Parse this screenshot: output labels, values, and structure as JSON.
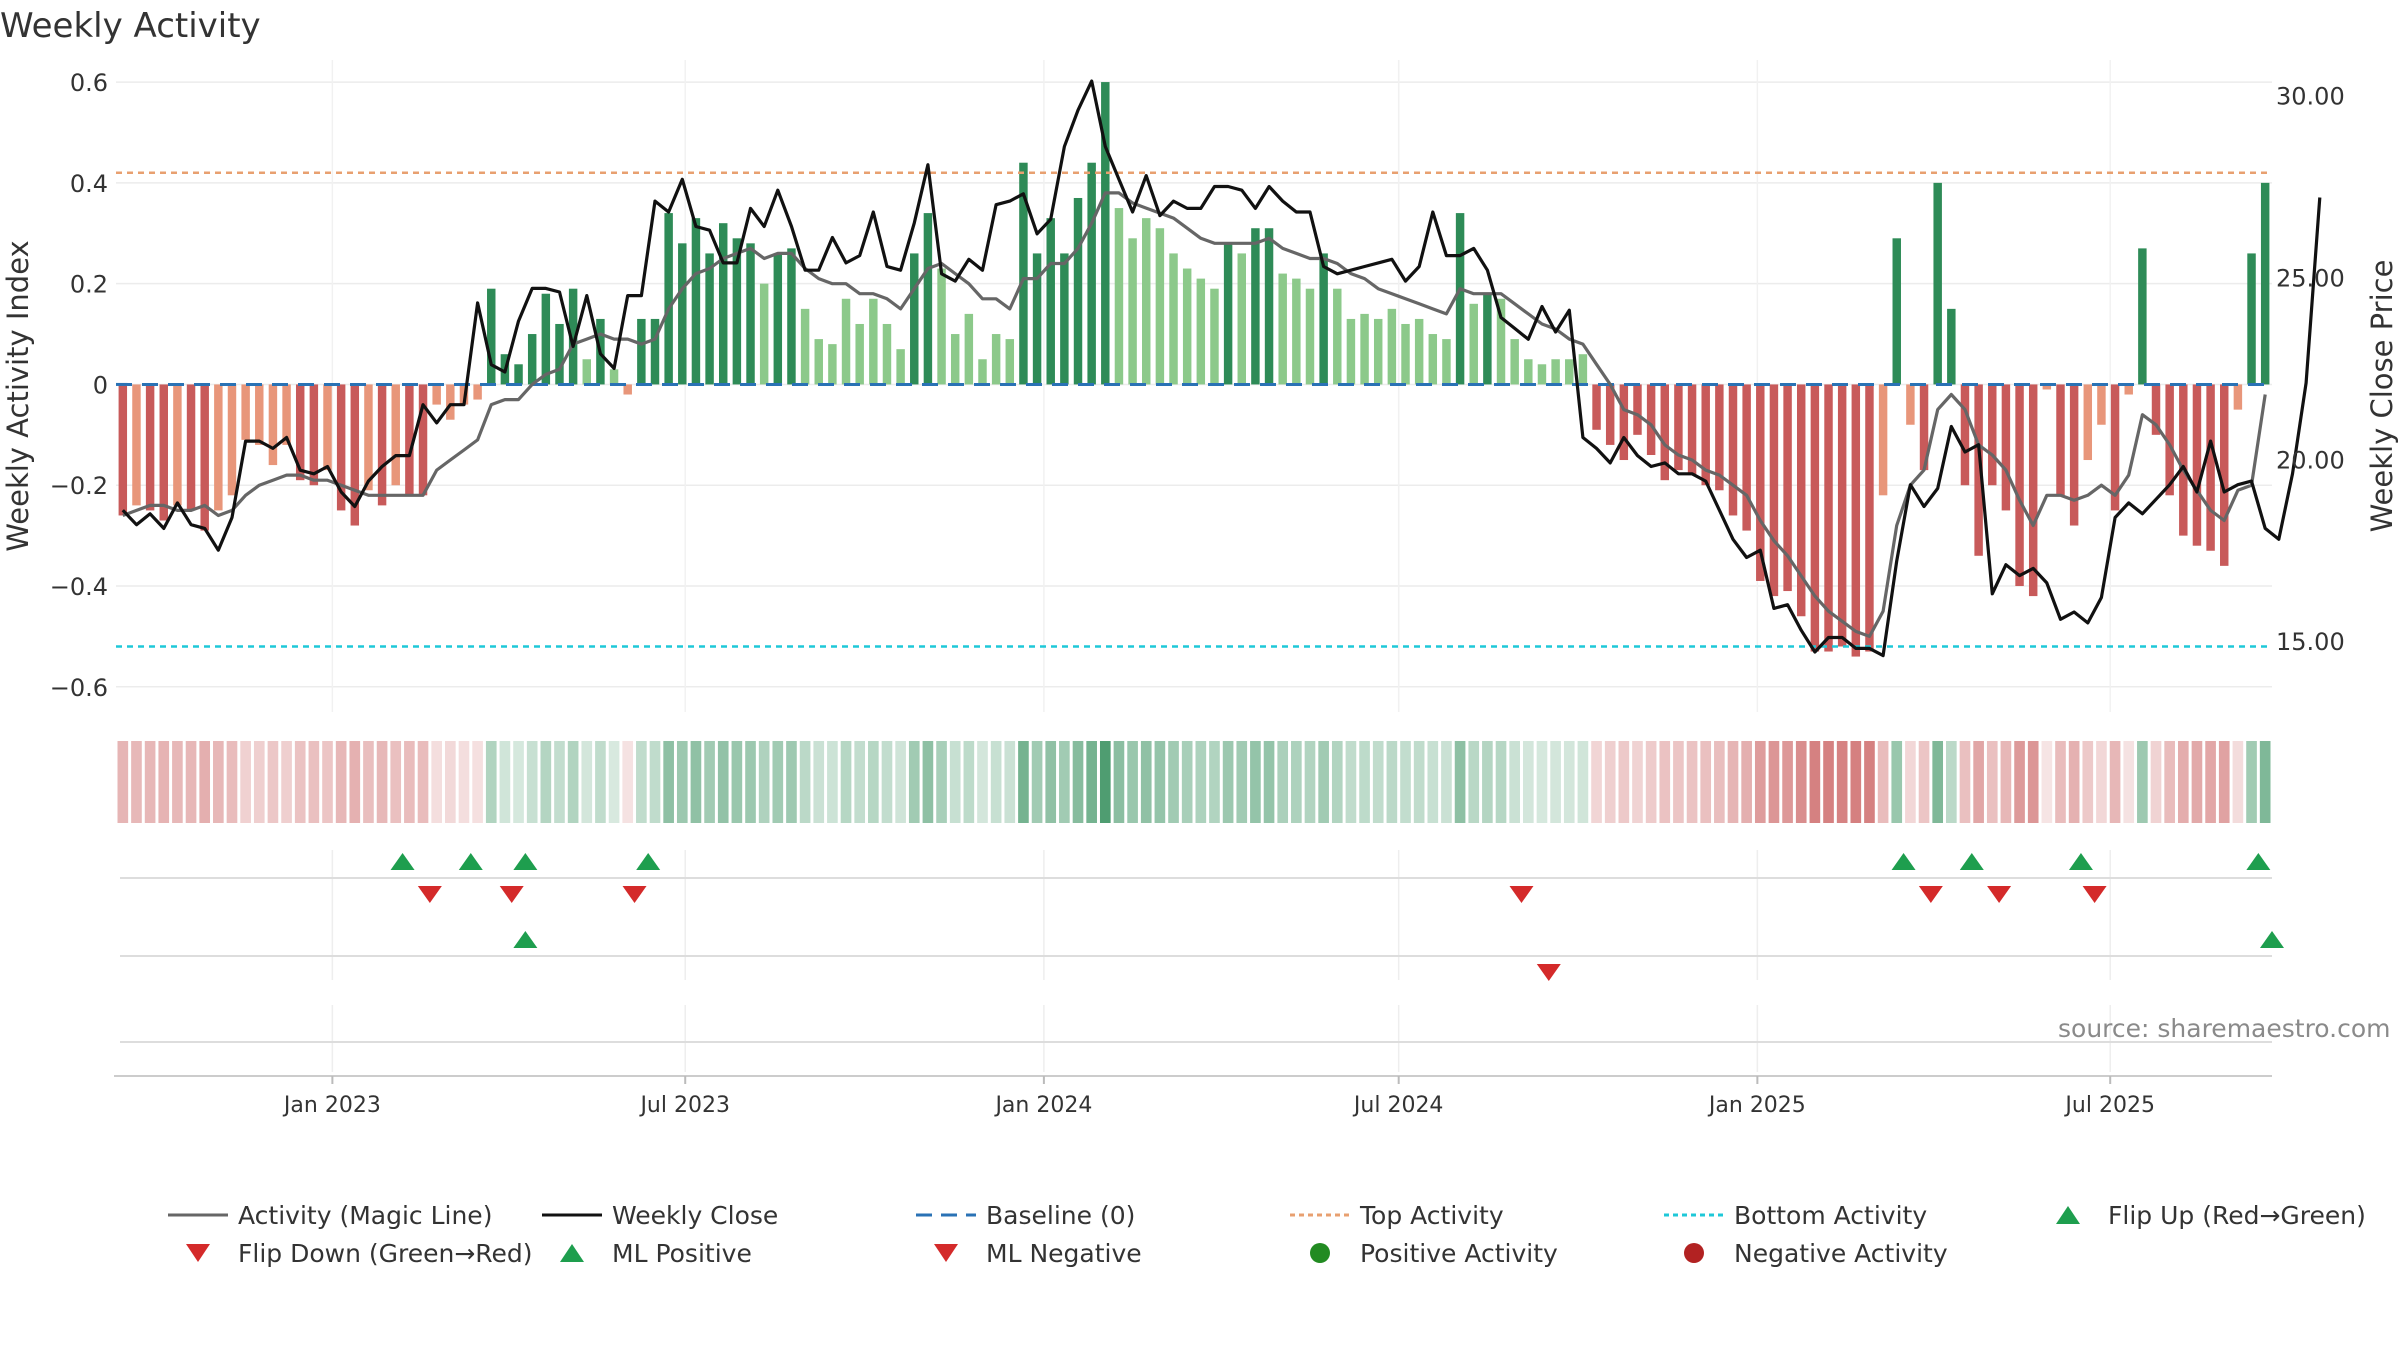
{
  "title": "Weekly Activity",
  "source": "source: sharemaestro.com",
  "colors": {
    "pos_dark": "#2e8b57",
    "pos_light": "#8cc98a",
    "neg_dark": "#c85a5a",
    "neg_light": "#e8967a",
    "magic_line": "#666666",
    "close_line": "#111111",
    "baseline": "#2a72b5",
    "top_line": "#e8a070",
    "bottom_line": "#1ec8d8",
    "flip_up": "#1e9e4e",
    "flip_down": "#d42a2a",
    "positive_marker": "#228b22",
    "negative_marker": "#b22222"
  },
  "chart_data": {
    "type": "bar",
    "title": "Weekly Activity",
    "xlabel": "",
    "ylabel": "Weekly Activity Index",
    "y2label": "Weekly Close Price",
    "ylim": [
      -0.65,
      0.62
    ],
    "y2lim": [
      13.05,
      30.65
    ],
    "yticks": [
      -0.6,
      -0.4,
      -0.2,
      0,
      0.2,
      0.4,
      0.6
    ],
    "yticklabels": [
      "−0.6",
      "−0.4",
      "−0.2",
      "0",
      "0.2",
      "0.4",
      "0.6"
    ],
    "y2ticks": [
      15,
      20,
      25,
      30
    ],
    "y2ticklabels": [
      "15.00",
      "20.00",
      "25.00",
      "30.00"
    ],
    "x_start": "2022-09-12",
    "x_end": "2025-09-22",
    "xticks": [
      "2023-01-01",
      "2023-07-01",
      "2024-01-01",
      "2024-07-01",
      "2025-01-01",
      "2025-07-01"
    ],
    "xticklabels": [
      "Jan 2023",
      "Jul 2023",
      "Jan 2024",
      "Jul 2024",
      "Jan 2025",
      "Jul 2025"
    ],
    "top_activity": 0.42,
    "bottom_activity": -0.52,
    "baseline": 0,
    "grid": true,
    "legend_position": "bottom",
    "legend": [
      "Activity (Magic Line)",
      "Weekly Close",
      "Baseline (0)",
      "Top Activity",
      "Bottom Activity",
      "Flip Up (Red→Green)",
      "Flip Down (Green→Red)",
      "ML Positive",
      "ML Negative",
      "Positive Activity",
      "Negative Activity"
    ],
    "activity": [
      -0.26,
      -0.24,
      -0.25,
      -0.27,
      -0.24,
      -0.25,
      -0.29,
      -0.25,
      -0.22,
      -0.11,
      -0.12,
      -0.16,
      -0.12,
      -0.19,
      -0.2,
      -0.17,
      -0.25,
      -0.28,
      -0.21,
      -0.24,
      -0.2,
      -0.22,
      -0.22,
      -0.04,
      -0.07,
      -0.04,
      -0.03,
      0.19,
      0.06,
      0.04,
      0.1,
      0.18,
      0.12,
      0.19,
      0.05,
      0.13,
      0.03,
      -0.02,
      0.13,
      0.13,
      0.34,
      0.28,
      0.33,
      0.26,
      0.32,
      0.29,
      0.28,
      0.2,
      0.26,
      0.27,
      0.15,
      0.09,
      0.08,
      0.17,
      0.12,
      0.17,
      0.12,
      0.07,
      0.26,
      0.34,
      0.23,
      0.1,
      0.14,
      0.05,
      0.1,
      0.09,
      0.44,
      0.26,
      0.33,
      0.26,
      0.37,
      0.44,
      0.6,
      0.35,
      0.29,
      0.33,
      0.31,
      0.26,
      0.23,
      0.21,
      0.19,
      0.28,
      0.26,
      0.31,
      0.31,
      0.22,
      0.21,
      0.19,
      0.26,
      0.19,
      0.13,
      0.14,
      0.13,
      0.15,
      0.12,
      0.13,
      0.1,
      0.09,
      0.34,
      0.16,
      0.18,
      0.17,
      0.09,
      0.05,
      0.04,
      0.05,
      0.05,
      0.06,
      -0.09,
      -0.12,
      -0.15,
      -0.1,
      -0.14,
      -0.19,
      -0.17,
      -0.18,
      -0.2,
      -0.21,
      -0.26,
      -0.29,
      -0.39,
      -0.42,
      -0.41,
      -0.46,
      -0.53,
      -0.53,
      -0.52,
      -0.54,
      -0.53,
      -0.22,
      0.29,
      -0.08,
      -0.17,
      0.4,
      0.15,
      -0.2,
      -0.34,
      -0.2,
      -0.25,
      -0.4,
      -0.42,
      -0.01,
      -0.22,
      -0.28,
      -0.15,
      -0.08,
      -0.25,
      -0.02,
      0.27,
      -0.1,
      -0.22,
      -0.3,
      -0.32,
      -0.33,
      -0.36,
      -0.05,
      0.26,
      0.4
    ],
    "magic_line": [
      -0.26,
      -0.25,
      -0.24,
      -0.24,
      -0.25,
      -0.25,
      -0.24,
      -0.26,
      -0.25,
      -0.22,
      -0.2,
      -0.19,
      -0.18,
      -0.18,
      -0.19,
      -0.19,
      -0.2,
      -0.21,
      -0.22,
      -0.22,
      -0.22,
      -0.22,
      -0.22,
      -0.17,
      -0.15,
      -0.13,
      -0.11,
      -0.04,
      -0.03,
      -0.03,
      0,
      0.02,
      0.03,
      0.08,
      0.09,
      0.1,
      0.09,
      0.09,
      0.08,
      0.09,
      0.15,
      0.19,
      0.22,
      0.23,
      0.25,
      0.26,
      0.27,
      0.25,
      0.26,
      0.26,
      0.23,
      0.21,
      0.2,
      0.2,
      0.18,
      0.18,
      0.17,
      0.15,
      0.19,
      0.23,
      0.24,
      0.22,
      0.2,
      0.17,
      0.17,
      0.15,
      0.21,
      0.21,
      0.24,
      0.24,
      0.27,
      0.32,
      0.38,
      0.38,
      0.36,
      0.35,
      0.34,
      0.33,
      0.31,
      0.29,
      0.28,
      0.28,
      0.28,
      0.28,
      0.29,
      0.27,
      0.26,
      0.25,
      0.25,
      0.24,
      0.22,
      0.21,
      0.19,
      0.18,
      0.17,
      0.16,
      0.15,
      0.14,
      0.19,
      0.18,
      0.18,
      0.18,
      0.16,
      0.14,
      0.12,
      0.11,
      0.09,
      0.08,
      0.04,
      0,
      -0.05,
      -0.06,
      -0.08,
      -0.12,
      -0.14,
      -0.15,
      -0.17,
      -0.18,
      -0.2,
      -0.22,
      -0.27,
      -0.31,
      -0.34,
      -0.38,
      -0.42,
      -0.45,
      -0.47,
      -0.49,
      -0.5,
      -0.45,
      -0.28,
      -0.2,
      -0.17,
      -0.05,
      -0.02,
      -0.05,
      -0.12,
      -0.14,
      -0.17,
      -0.23,
      -0.28,
      -0.22,
      -0.22,
      -0.23,
      -0.22,
      -0.2,
      -0.22,
      -0.18,
      -0.06,
      -0.08,
      -0.12,
      -0.17,
      -0.21,
      -0.25,
      -0.27,
      -0.21,
      -0.2,
      -0.02
    ],
    "close": [
      18.6,
      18.2,
      18.5,
      18.1,
      18.8,
      18.2,
      18.1,
      17.5,
      18.4,
      20.5,
      20.5,
      20.3,
      20.6,
      19.7,
      19.6,
      19.8,
      19.1,
      18.7,
      19.4,
      19.8,
      20.1,
      20.1,
      21.5,
      21,
      21.5,
      21.5,
      24.3,
      22.6,
      22.4,
      23.8,
      24.7,
      24.7,
      24.6,
      23.1,
      24.5,
      22.9,
      22.5,
      24.5,
      24.5,
      27.1,
      26.8,
      27.7,
      26.4,
      26.3,
      25.4,
      25.4,
      26.9,
      26.4,
      27.4,
      26.4,
      25.2,
      25.2,
      26.1,
      25.4,
      25.6,
      26.8,
      25.3,
      25.2,
      26.5,
      28.1,
      25.1,
      24.9,
      25.5,
      25.2,
      27,
      27.1,
      27.3,
      26.2,
      26.6,
      28.6,
      29.6,
      30.4,
      28.6,
      27.7,
      26.8,
      27.8,
      26.7,
      27.1,
      26.9,
      26.9,
      27.5,
      27.5,
      27.4,
      26.9,
      27.5,
      27.1,
      26.8,
      26.8,
      25.3,
      25.1,
      25.2,
      25.3,
      25.4,
      25.5,
      24.9,
      25.3,
      26.8,
      25.6,
      25.6,
      25.8,
      25.2,
      23.9,
      23.6,
      23.3,
      24.2,
      23.5,
      24.1,
      20.6,
      20.3,
      19.9,
      20.6,
      20.1,
      19.8,
      19.9,
      19.6,
      19.6,
      19.4,
      18.6,
      17.8,
      17.3,
      17.5,
      15.9,
      16,
      15.3,
      14.7,
      15.1,
      15.1,
      14.8,
      14.8,
      14.6,
      17.2,
      19.3,
      18.7,
      19.2,
      20.9,
      20.2,
      20.4,
      16.3,
      17.1,
      16.8,
      17,
      16.6,
      15.6,
      15.8,
      15.5,
      16.2,
      18.4,
      18.8,
      18.5,
      18.9,
      19.3,
      19.8,
      19.1,
      20.5,
      19.1,
      19.3,
      19.4,
      18.1,
      17.8,
      19.6,
      22.1,
      27.2
    ]
  },
  "flip_up": {
    "row1": [
      "2023-02-06",
      "2023-03-13",
      "2023-04-10",
      "2023-06-12",
      "2025-03-17",
      "2025-04-21",
      "2025-06-16",
      "2025-09-15"
    ],
    "row2": [
      "2023-04-10",
      "2025-09-22"
    ]
  },
  "flip_down": {
    "row1": [
      "2023-02-20",
      "2023-04-03",
      "2023-06-05",
      "2024-09-02",
      "2025-03-31",
      "2025-05-05",
      "2025-06-23"
    ],
    "row2": [
      "2024-09-16"
    ]
  },
  "legend_items": [
    {
      "label": "Activity (Magic Line)",
      "icon": "line-icon"
    },
    {
      "label": "Weekly Close",
      "icon": "line-icon"
    },
    {
      "label": "Baseline (0)",
      "icon": "dashed-line-icon"
    },
    {
      "label": "Top Activity",
      "icon": "dotted-line-icon"
    },
    {
      "label": "Bottom Activity",
      "icon": "dotted-line-icon"
    },
    {
      "label": "Flip Up (Red→Green)",
      "icon": "triangle-up-icon"
    },
    {
      "label": "Flip Down (Green→Red)",
      "icon": "triangle-down-icon"
    },
    {
      "label": "ML Positive",
      "icon": "triangle-up-icon"
    },
    {
      "label": "ML Negative",
      "icon": "triangle-down-icon"
    },
    {
      "label": "Positive Activity",
      "icon": "circle-icon"
    },
    {
      "label": "Negative Activity",
      "icon": "circle-icon"
    }
  ]
}
